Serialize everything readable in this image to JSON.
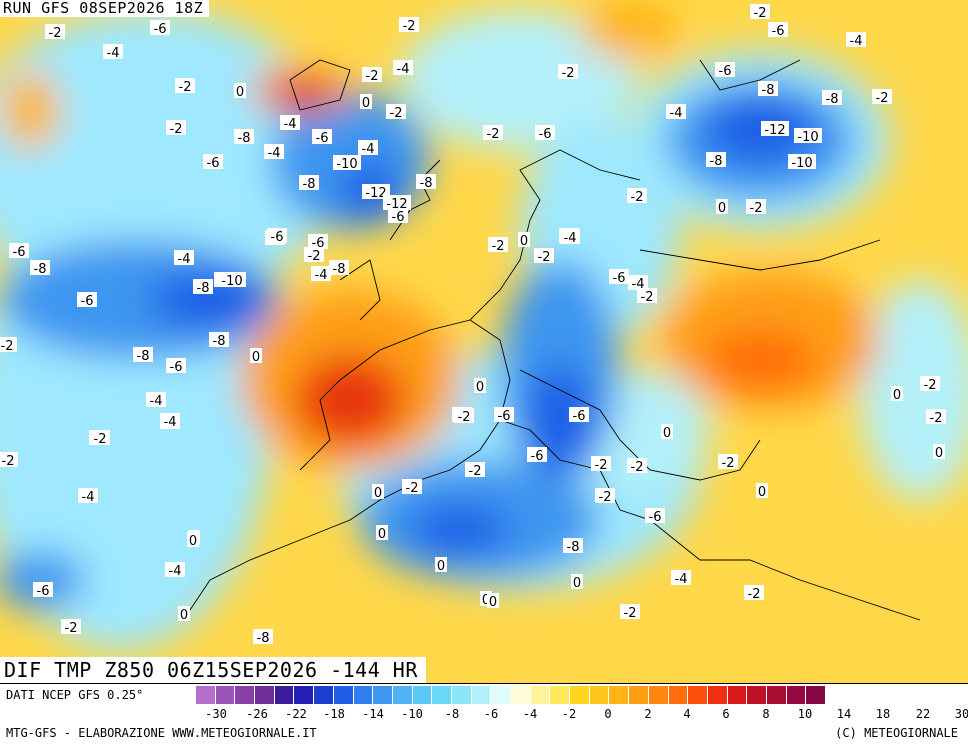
{
  "header": {
    "run_title": "RUN GFS 08SEP2026 18Z"
  },
  "map": {
    "field_title": "DIF TMP Z850 06Z15SEP2026 -144 HR",
    "region": "Europe, North Atlantic, North Africa, Middle East",
    "colors": {
      "cold_core": "#1c3fd0",
      "cold": "#3e8cf0",
      "cool": "#9fe8ff",
      "neutral": "#fffdf0",
      "warm": "#ffd84a",
      "hot": "#ff8b1c",
      "hot_core": "#e8340f"
    },
    "contour_labels": [
      {
        "v": "-6"
      },
      {
        "v": "-2"
      },
      {
        "v": "-4"
      },
      {
        "v": "-2"
      },
      {
        "v": "-2"
      },
      {
        "v": "-6"
      },
      {
        "v": "-4"
      },
      {
        "v": "-2"
      },
      {
        "v": "0"
      },
      {
        "v": "-2"
      },
      {
        "v": "-4"
      },
      {
        "v": "0"
      },
      {
        "v": "-2"
      },
      {
        "v": "-2"
      },
      {
        "v": "-6"
      },
      {
        "v": "-8"
      },
      {
        "v": "-4"
      },
      {
        "v": "-2"
      },
      {
        "v": "-8"
      },
      {
        "v": "-12"
      },
      {
        "v": "-10"
      },
      {
        "v": "-6"
      },
      {
        "v": "-4"
      },
      {
        "v": "-8"
      },
      {
        "v": "-2"
      },
      {
        "v": "-2"
      },
      {
        "v": "-6"
      },
      {
        "v": "-4"
      },
      {
        "v": "-12"
      },
      {
        "v": "-6"
      },
      {
        "v": "-10"
      },
      {
        "v": "-4"
      },
      {
        "v": "-8"
      },
      {
        "v": "-12"
      },
      {
        "v": "-8"
      },
      {
        "v": "-2"
      },
      {
        "v": "0"
      },
      {
        "v": "-4"
      },
      {
        "v": "-2"
      },
      {
        "v": "0"
      },
      {
        "v": "-6"
      },
      {
        "v": "-6"
      },
      {
        "v": "-4"
      },
      {
        "v": "-2"
      },
      {
        "v": "-4"
      },
      {
        "v": "-8"
      },
      {
        "v": "-10"
      },
      {
        "v": "-4"
      },
      {
        "v": "-6"
      },
      {
        "v": "-10"
      },
      {
        "v": "-8"
      },
      {
        "v": "-8"
      },
      {
        "v": "-6"
      },
      {
        "v": "0"
      },
      {
        "v": "-4"
      },
      {
        "v": "-2"
      },
      {
        "v": "-2"
      },
      {
        "v": "-4"
      },
      {
        "v": "0"
      },
      {
        "v": "-8"
      },
      {
        "v": "-6"
      },
      {
        "v": "-8"
      },
      {
        "v": "-4"
      },
      {
        "v": "-6"
      },
      {
        "v": "-2"
      },
      {
        "v": "-4"
      },
      {
        "v": "-6"
      },
      {
        "v": "-8"
      },
      {
        "v": "-10"
      },
      {
        "v": "-4"
      },
      {
        "v": "-2"
      },
      {
        "v": "0"
      },
      {
        "v": "-6"
      },
      {
        "v": "-4"
      },
      {
        "v": "-2"
      },
      {
        "v": "0"
      },
      {
        "v": "-6"
      },
      {
        "v": "-2"
      },
      {
        "v": "-2"
      },
      {
        "v": "0"
      },
      {
        "v": "-2"
      },
      {
        "v": "0"
      },
      {
        "v": "-2"
      },
      {
        "v": "-2"
      },
      {
        "v": "0"
      },
      {
        "v": "-2"
      },
      {
        "v": "-6"
      },
      {
        "v": "-2"
      },
      {
        "v": "-2"
      },
      {
        "v": "0"
      },
      {
        "v": "-4"
      },
      {
        "v": "-8"
      },
      {
        "v": "-6"
      },
      {
        "v": "-2"
      },
      {
        "v": "0"
      },
      {
        "v": "0"
      },
      {
        "v": "0"
      },
      {
        "v": "-2"
      },
      {
        "v": "0"
      },
      {
        "v": "-2"
      },
      {
        "v": "-4"
      },
      {
        "v": "-8"
      },
      {
        "v": "-2"
      },
      {
        "v": "-2"
      },
      {
        "v": "0"
      },
      {
        "v": "0"
      },
      {
        "v": "-2"
      },
      {
        "v": "-6"
      },
      {
        "v": "0"
      },
      {
        "v": "-2"
      },
      {
        "v": "-2"
      },
      {
        "v": "0"
      }
    ]
  },
  "legend": {
    "source": "DATI NCEP GFS 0.25°",
    "colors": [
      "#b36fc9",
      "#9b55b8",
      "#8a40a8",
      "#6e2f9a",
      "#3b1c9a",
      "#251fb5",
      "#1c3fd0",
      "#1f5ee6",
      "#2f7ff0",
      "#3e96f0",
      "#4db3f5",
      "#58c8f5",
      "#6ad9f5",
      "#8ae6f8",
      "#b3f0fa",
      "#e0fbfc",
      "#fffbd6",
      "#fff29a",
      "#ffe95a",
      "#ffd61f",
      "#ffc51a",
      "#ffb515",
      "#ff9e12",
      "#ff8610",
      "#ff6d0e",
      "#ff4f0c",
      "#ef2f10",
      "#d81a1a",
      "#c01226",
      "#a80d34",
      "#960a40",
      "#850844"
    ],
    "ticks": [
      "-30",
      "-26",
      "-22",
      "-18",
      "-14",
      "-10",
      "-8",
      "-6",
      "-4",
      "-2",
      "0",
      "2",
      "4",
      "6",
      "8",
      "10",
      "14",
      "18",
      "22",
      "30"
    ]
  },
  "footer": {
    "left": "MTG-GFS - ELABORAZIONE WWW.METEOGIORNALE.IT",
    "right": "(C) METEOGIORNALE"
  }
}
